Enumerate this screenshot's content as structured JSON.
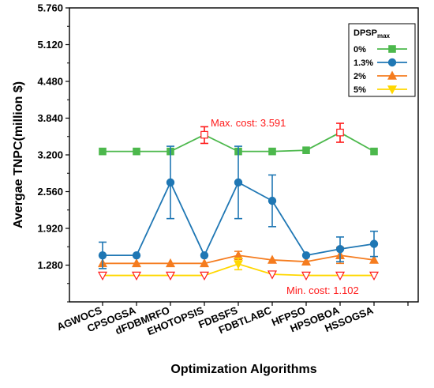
{
  "chart_data": {
    "type": "line",
    "xlabel": "Optimization Algorithms",
    "ylabel": "Avergae TNPC(million $)",
    "ylim": [
      0.64,
      5.76
    ],
    "y_ticks": [
      "1.280",
      "1.920",
      "2.560",
      "3.200",
      "3.840",
      "4.480",
      "5.120",
      "5.760"
    ],
    "categories": [
      "AGWOCS",
      "CPSOGSA",
      "dFDBMRFO",
      "EHOTOPSIS",
      "FDBSFS",
      "FDBTLABC",
      "HFPSO",
      "HPSOBOA",
      "HSSOGSA"
    ],
    "grid": false,
    "legend_position": "top-right",
    "legend_title_main": "DPSP",
    "legend_title_sub": "max",
    "series": [
      {
        "name": "0%",
        "color": "#4cb84c",
        "marker": "square",
        "values": [
          3.26,
          3.26,
          3.26,
          3.55,
          3.26,
          3.26,
          3.28,
          3.59,
          3.26
        ],
        "err_low": [
          null,
          null,
          null,
          3.4,
          null,
          null,
          null,
          3.42,
          null
        ],
        "err_high": [
          null,
          null,
          null,
          3.69,
          null,
          null,
          null,
          3.75,
          null
        ]
      },
      {
        "name": "1.3%",
        "color": "#1f77b4",
        "marker": "circle",
        "values": [
          1.45,
          1.45,
          2.72,
          1.45,
          2.72,
          2.4,
          1.45,
          1.56,
          1.65
        ],
        "err_low": [
          1.22,
          null,
          2.09,
          null,
          2.09,
          1.95,
          null,
          1.34,
          1.43
        ],
        "err_high": [
          1.68,
          null,
          3.35,
          null,
          3.35,
          2.85,
          null,
          1.77,
          1.87
        ]
      },
      {
        "name": "2%",
        "color": "#f57c1f",
        "marker": "triangle-up",
        "values": [
          1.31,
          1.31,
          1.31,
          1.31,
          1.45,
          1.37,
          1.34,
          1.45,
          1.37
        ],
        "err_low": [
          null,
          null,
          null,
          null,
          1.38,
          null,
          null,
          1.31,
          null
        ],
        "err_high": [
          null,
          null,
          null,
          null,
          1.52,
          null,
          null,
          1.59,
          null
        ]
      },
      {
        "name": "5%",
        "color": "#ffd700",
        "marker": "triangle-down",
        "values": [
          1.1,
          1.1,
          1.1,
          1.1,
          1.3,
          1.12,
          1.1,
          1.1,
          1.1
        ],
        "err_low": [
          null,
          null,
          null,
          null,
          1.2,
          null,
          null,
          null,
          null
        ],
        "err_high": [
          null,
          null,
          null,
          null,
          1.4,
          null,
          null,
          null,
          null
        ]
      }
    ],
    "annotations": [
      {
        "text": "Max. cost: 3.591",
        "color": "#ff1a1a"
      },
      {
        "text": "Min. cost: 1.102",
        "color": "#ff1a1a"
      }
    ],
    "highlight_points": [
      {
        "series_index": 0,
        "category_index": 3,
        "color": "#ff1a1a",
        "marker": "square-open"
      },
      {
        "series_index": 0,
        "category_index": 7,
        "color": "#ff1a1a",
        "marker": "square-open"
      },
      {
        "series_index": 3,
        "category_index": 0,
        "color": "#ff1a1a",
        "marker": "triangle-down-open"
      },
      {
        "series_index": 3,
        "category_index": 1,
        "color": "#ff1a1a",
        "marker": "triangle-down-open"
      },
      {
        "series_index": 3,
        "category_index": 2,
        "color": "#ff1a1a",
        "marker": "triangle-down-open"
      },
      {
        "series_index": 3,
        "category_index": 3,
        "color": "#ff1a1a",
        "marker": "triangle-down-open"
      },
      {
        "series_index": 3,
        "category_index": 5,
        "color": "#ff1a1a",
        "marker": "triangle-down-open"
      },
      {
        "series_index": 3,
        "category_index": 6,
        "color": "#ff1a1a",
        "marker": "triangle-down-open"
      },
      {
        "series_index": 3,
        "category_index": 7,
        "color": "#ff1a1a",
        "marker": "triangle-down-open"
      },
      {
        "series_index": 3,
        "category_index": 8,
        "color": "#ff1a1a",
        "marker": "triangle-down-open"
      }
    ]
  }
}
